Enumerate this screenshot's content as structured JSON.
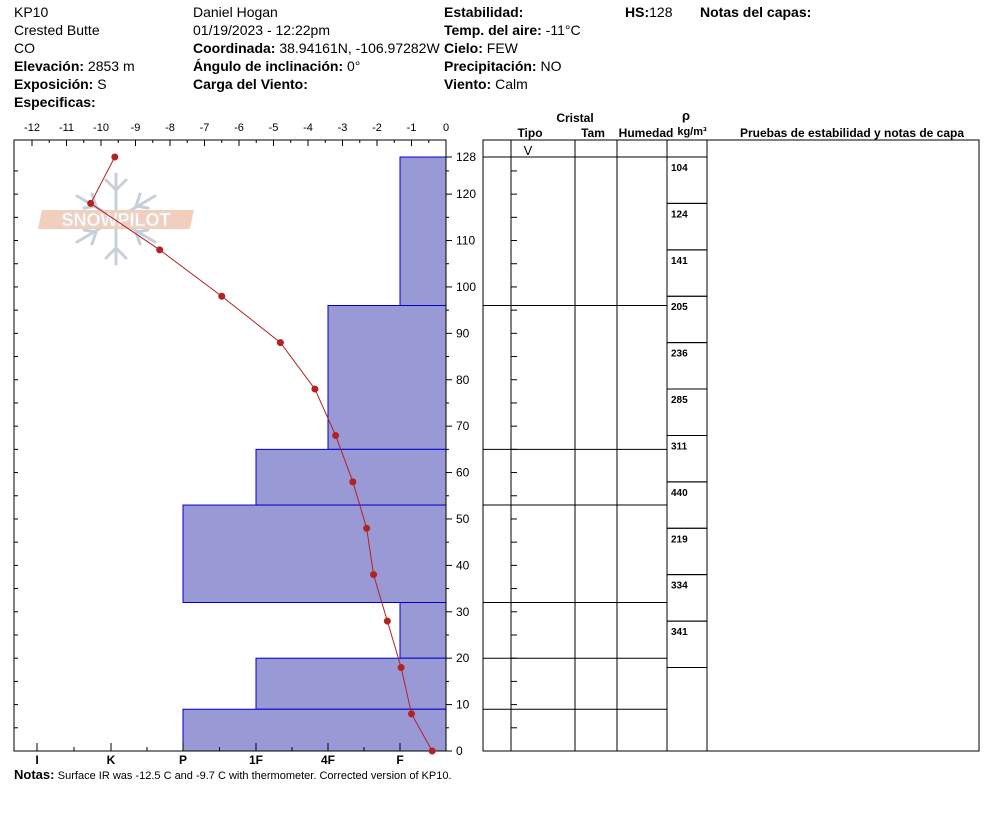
{
  "header": {
    "site_id": "KP10",
    "location": "Crested Butte",
    "state": "CO",
    "elevation_label": "Elevación:",
    "elevation_value": "2853 m",
    "aspect_label": "Exposición:",
    "aspect_value": "S",
    "specifics_label": "Especificas:",
    "observer": "Daniel Hogan",
    "datetime": "01/19/2023 - 12:22pm",
    "coord_label": "Coordinada:",
    "coord_value": "38.94161N, -106.97282W",
    "slope_label": "Ángulo de inclinación:",
    "slope_value": "0°",
    "wind_load_label": "Carga del Viento:",
    "stability_label": "Estabilidad:",
    "air_temp_label": "Temp. del aire:",
    "air_temp_value": "-11°C",
    "sky_label": "Cielo:",
    "sky_value": "FEW",
    "precip_label": "Precipitación:",
    "precip_value": "NO",
    "wind_label": "Viento:",
    "wind_value": "Calm",
    "hs_label": "HS:",
    "hs_value": "128",
    "layer_notes_label": "Notas del capas:"
  },
  "columns": {
    "crystal": "Cristal",
    "type": "Tipo",
    "size": "Tam",
    "moisture": "Humedad",
    "rho": "ρ",
    "density_unit": "kg/m³",
    "tests": "Pruebas de estabilidad y notas de capa"
  },
  "crystal_symbol": "V",
  "logo_text": "SNOWPILOT",
  "notes": {
    "label": "Notas:",
    "text": "Surface IR was -12.5 C and -9.7 C with thermometer. Corrected version of KP10."
  },
  "chart_data": {
    "type": "line",
    "temp_axis": {
      "ticks": [
        "-12",
        "-11",
        "-10",
        "-9",
        "-8",
        "-7",
        "-6",
        "-5",
        "-4",
        "-3",
        "-2",
        "-1",
        "0"
      ],
      "range": [
        -12,
        0
      ]
    },
    "height_axis": {
      "ticks": [
        "128",
        "120",
        "110",
        "100",
        "90",
        "80",
        "70",
        "60",
        "50",
        "40",
        "30",
        "20",
        "10",
        "0"
      ],
      "range": [
        0,
        130
      ]
    },
    "hardness_axis": {
      "ticks": [
        "I",
        "K",
        "P",
        "1F",
        "4F",
        "F"
      ]
    },
    "temperature_profile": [
      {
        "height": 128,
        "temp": -9.6
      },
      {
        "height": 118,
        "temp": -10.3
      },
      {
        "height": 108,
        "temp": -8.3
      },
      {
        "height": 98,
        "temp": -6.5
      },
      {
        "height": 88,
        "temp": -4.8
      },
      {
        "height": 78,
        "temp": -3.8
      },
      {
        "height": 68,
        "temp": -3.2
      },
      {
        "height": 58,
        "temp": -2.7
      },
      {
        "height": 48,
        "temp": -2.3
      },
      {
        "height": 38,
        "temp": -2.1
      },
      {
        "height": 28,
        "temp": -1.7
      },
      {
        "height": 18,
        "temp": -1.3
      },
      {
        "height": 8,
        "temp": -1.0
      },
      {
        "height": 0,
        "temp": -0.4
      }
    ],
    "hardness_profile": [
      {
        "bottom": 96,
        "top": 128,
        "hardness": "F"
      },
      {
        "bottom": 65,
        "top": 96,
        "hardness": "4F"
      },
      {
        "bottom": 53,
        "top": 65,
        "hardness": "1F"
      },
      {
        "bottom": 32,
        "top": 53,
        "hardness": "P"
      },
      {
        "bottom": 20,
        "top": 32,
        "hardness": "F"
      },
      {
        "bottom": 9,
        "top": 20,
        "hardness": "1F"
      },
      {
        "bottom": 0,
        "top": 9,
        "hardness": "P"
      }
    ],
    "layer_boundaries": [
      128,
      96,
      65,
      53,
      32,
      20,
      9,
      0
    ],
    "density_samples": [
      {
        "height": 123,
        "value": "104"
      },
      {
        "height": 113,
        "value": "124"
      },
      {
        "height": 103,
        "value": "141"
      },
      {
        "height": 93,
        "value": "205"
      },
      {
        "height": 83,
        "value": "236"
      },
      {
        "height": 73,
        "value": "285"
      },
      {
        "height": 63,
        "value": "311"
      },
      {
        "height": 53,
        "value": "440"
      },
      {
        "height": 43,
        "value": "219"
      },
      {
        "height": 33,
        "value": "334"
      },
      {
        "height": 23,
        "value": "341"
      }
    ],
    "colors": {
      "hardness_fill": "#9999d6",
      "hardness_stroke": "#0000cc",
      "temp_line": "#b22222"
    }
  }
}
